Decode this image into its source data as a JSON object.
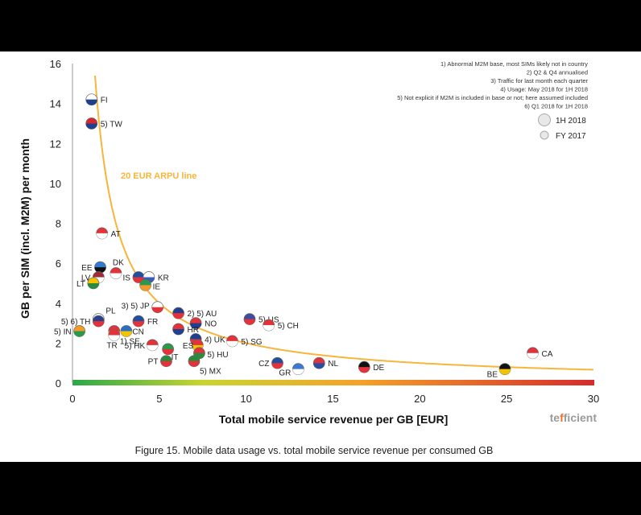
{
  "caption": "Figure 15. Mobile data usage vs. total mobile service revenue per consumed GB",
  "brand": {
    "prefix": "te",
    "mark": "f",
    "suffix": "ficient"
  },
  "footnotes": [
    "1) Abnormal M2M base, most SIMs likely not in country",
    "2) Q2 & Q4 annualised",
    "3) Traffic for last month each quarter",
    "4) Usage: May 2018 for 1H 2018",
    "5) Not explicit if M2M is included in base or not; here  assumed included",
    "6) Q1 2018 for 1H 2018"
  ],
  "legend": [
    {
      "label": "1H 2018",
      "size": "large"
    },
    {
      "label": "FY 2017",
      "size": "small"
    }
  ],
  "chart_data": {
    "type": "scatter",
    "xlabel": "Total mobile service revenue per GB [EUR]",
    "ylabel": "GB per SIM (incl. M2M) per month",
    "xlim": [
      0,
      30
    ],
    "ylim": [
      0,
      16
    ],
    "xticks": [
      "0",
      "5",
      "10",
      "15",
      "20",
      "25",
      "30"
    ],
    "yticks": [
      "0",
      "2",
      "4",
      "6",
      "8",
      "10",
      "12",
      "14",
      "16"
    ],
    "grid": false,
    "legend_position": "top-right",
    "curve": {
      "label": "20 EUR ARPU line",
      "arpu": 20,
      "color": "#f7b53b"
    },
    "points": [
      {
        "label": "FI",
        "x": 1.1,
        "y": 14.2,
        "colors": [
          "#ffffff",
          "#1f3f8f"
        ]
      },
      {
        "label": "5) TW",
        "x": 1.1,
        "y": 13.0,
        "colors": [
          "#d8262c",
          "#1f3f8f"
        ]
      },
      {
        "label": "AT",
        "x": 1.7,
        "y": 7.5,
        "colors": [
          "#e3323a",
          "#ffffff"
        ]
      },
      {
        "label": "EE",
        "x": 1.6,
        "y": 5.8,
        "colors": [
          "#2f7bd1",
          "#111111"
        ]
      },
      {
        "label": "DK",
        "x": 2.5,
        "y": 5.5,
        "colors": [
          "#e3323a",
          "#ffffff"
        ]
      },
      {
        "label": "LV",
        "x": 1.5,
        "y": 5.3,
        "colors": [
          "#9e2b37",
          "#ffffff"
        ]
      },
      {
        "label": "LT",
        "x": 1.2,
        "y": 5.0,
        "colors": [
          "#f5c400",
          "#2a8a3d"
        ]
      },
      {
        "label": "IS",
        "x": 3.8,
        "y": 5.3,
        "colors": [
          "#1f4fa0",
          "#e3323a"
        ]
      },
      {
        "label": "KR",
        "x": 4.4,
        "y": 5.3,
        "colors": [
          "#ffffff",
          "#3a5bb8"
        ]
      },
      {
        "label": "IE",
        "x": 4.2,
        "y": 4.9,
        "colors": [
          "#2a9a4a",
          "#f39a2b"
        ]
      },
      {
        "label": "3) 5) JP",
        "x": 4.9,
        "y": 3.8,
        "colors": [
          "#ffffff",
          "#e3323a"
        ]
      },
      {
        "label": "2) 5) AU",
        "x": 6.1,
        "y": 3.5,
        "colors": [
          "#1f3f8f",
          "#e3323a"
        ]
      },
      {
        "label": "5) US",
        "x": 10.2,
        "y": 3.2,
        "colors": [
          "#3a4fa0",
          "#e3323a"
        ]
      },
      {
        "label": "5) CH",
        "x": 11.3,
        "y": 2.9,
        "colors": [
          "#e3323a",
          "#ffffff"
        ]
      },
      {
        "label": "PL",
        "x": 1.5,
        "y": 3.2,
        "colors": [
          "#ffffff",
          "#e3323a"
        ]
      },
      {
        "label": "5) 6) TH",
        "x": 1.5,
        "y": 3.1,
        "colors": [
          "#2b3f8f",
          "#e3323a"
        ]
      },
      {
        "label": "FR",
        "x": 3.8,
        "y": 3.1,
        "colors": [
          "#1f4fa0",
          "#e3323a"
        ]
      },
      {
        "label": "NO",
        "x": 7.1,
        "y": 3.0,
        "colors": [
          "#e3323a",
          "#1f3f8f"
        ]
      },
      {
        "label": "5) IN",
        "x": 0.4,
        "y": 2.6,
        "colors": [
          "#f39a2b",
          "#2a9a4a"
        ]
      },
      {
        "label": "5) CN",
        "x": 2.4,
        "y": 2.6,
        "colors": [
          "#e3323a",
          "#f5c400"
        ]
      },
      {
        "label": "1) SE",
        "x": 3.1,
        "y": 2.6,
        "colors": [
          "#2b6fc4",
          "#f5c400"
        ]
      },
      {
        "label": "HR",
        "x": 6.1,
        "y": 2.7,
        "colors": [
          "#e3323a",
          "#1f3f8f"
        ]
      },
      {
        "label": "4) UK",
        "x": 7.1,
        "y": 2.2,
        "colors": [
          "#1f3f8f",
          "#e3323a"
        ]
      },
      {
        "label": "5) SG",
        "x": 9.2,
        "y": 2.1,
        "colors": [
          "#e3323a",
          "#ffffff"
        ]
      },
      {
        "label": "TR",
        "x": 2.4,
        "y": 2.4,
        "colors": [
          "#e3323a",
          "#ffffff"
        ]
      },
      {
        "label": "5) HK",
        "x": 4.6,
        "y": 1.9,
        "colors": [
          "#e3323a",
          "#ffffff"
        ]
      },
      {
        "label": "ES",
        "x": 7.2,
        "y": 1.9,
        "colors": [
          "#e3323a",
          "#f5c400"
        ]
      },
      {
        "label": "IT",
        "x": 5.5,
        "y": 1.7,
        "colors": [
          "#2a9a4a",
          "#e3323a"
        ]
      },
      {
        "label": "5) HU",
        "x": 7.3,
        "y": 1.5,
        "colors": [
          "#e3323a",
          "#2a8a3d"
        ]
      },
      {
        "label": "PT",
        "x": 5.4,
        "y": 1.1,
        "colors": [
          "#2a8a3d",
          "#e3323a"
        ]
      },
      {
        "label": "5) MX",
        "x": 7.0,
        "y": 1.1,
        "colors": [
          "#2a8a3d",
          "#e3323a"
        ]
      },
      {
        "label": "CZ",
        "x": 11.8,
        "y": 1.0,
        "colors": [
          "#1f4fa0",
          "#e3323a"
        ]
      },
      {
        "label": "GR",
        "x": 13.0,
        "y": 0.7,
        "colors": [
          "#3a7bd1",
          "#ffffff"
        ]
      },
      {
        "label": "NL",
        "x": 14.2,
        "y": 1.0,
        "colors": [
          "#e3323a",
          "#2b4fa0"
        ]
      },
      {
        "label": "DE",
        "x": 16.8,
        "y": 0.8,
        "colors": [
          "#111111",
          "#e3323a"
        ]
      },
      {
        "label": "CA",
        "x": 26.5,
        "y": 1.5,
        "colors": [
          "#e3323a",
          "#ffffff"
        ]
      },
      {
        "label": "BE",
        "x": 24.9,
        "y": 0.7,
        "colors": [
          "#111111",
          "#f5c400"
        ]
      }
    ]
  }
}
